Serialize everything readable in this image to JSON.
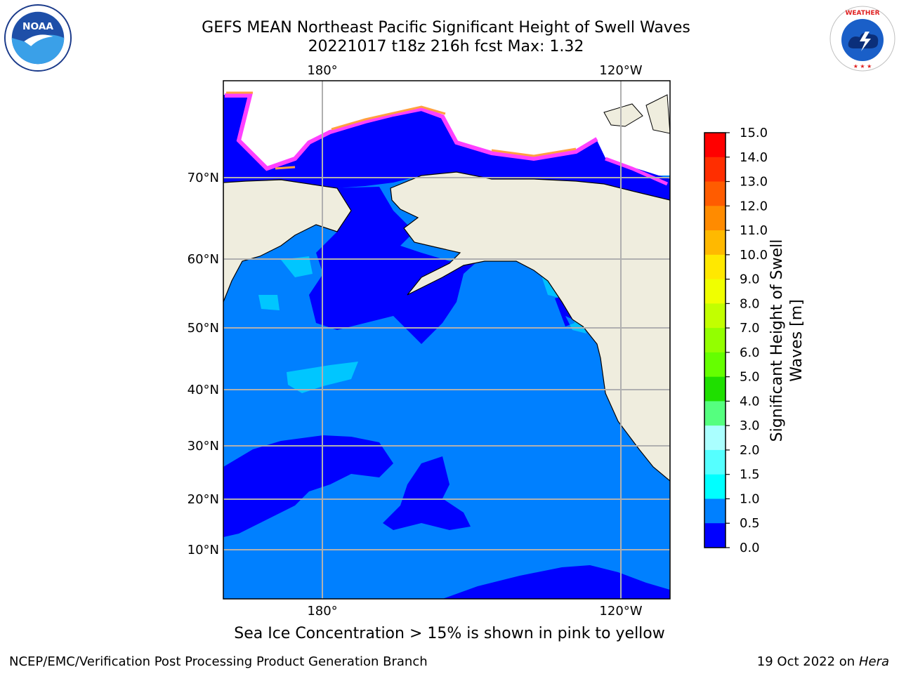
{
  "title": {
    "line1": "GEFS MEAN Northeast Pacific Significant Height of Swell Waves",
    "line2": "20221017 t18z 216h fcst   Max: 1.32"
  },
  "map": {
    "lon_labels": [
      "180°",
      "120°W"
    ],
    "lat_labels": [
      "70°N",
      "60°N",
      "50°N",
      "40°N",
      "30°N",
      "20°N",
      "10°N"
    ],
    "ocean_color": "#0080ff",
    "low_swell_color": "#0000ff",
    "land_color": "#efedde",
    "grid_color": "#b0b0b0"
  },
  "colorbar": {
    "label_line1": "Significant Height of Swell",
    "label_line2": "Waves [m]",
    "ticks": [
      "15.0",
      "14.0",
      "13.0",
      "12.0",
      "11.0",
      "10.0",
      "9.0",
      "8.0",
      "7.0",
      "6.0",
      "5.0",
      "4.0",
      "3.0",
      "2.0",
      "1.5",
      "1.0",
      "0.5",
      "0.0"
    ],
    "colors_top_to_bottom": [
      "#ff0000",
      "#ff2e00",
      "#ff5c00",
      "#ff8b00",
      "#ffb900",
      "#ffe800",
      "#f0ff00",
      "#c2ff00",
      "#93ff00",
      "#65ff00",
      "#1fdf00",
      "#55ff7f",
      "#aaffff",
      "#55ffff",
      "#00ffff",
      "#0080ff",
      "#0000ff"
    ]
  },
  "caption": "Sea Ice Concentration > 15% is shown in pink to yellow",
  "footer": {
    "left": "NCEP/EMC/Verification Post Processing Product Generation Branch",
    "right_prefix": "19 Oct 2022 on ",
    "right_host": "Hera"
  },
  "logos": {
    "left": "noaa-logo",
    "right": "nws-logo",
    "nws_text": "NATIONAL WEATHER SERVICE"
  }
}
